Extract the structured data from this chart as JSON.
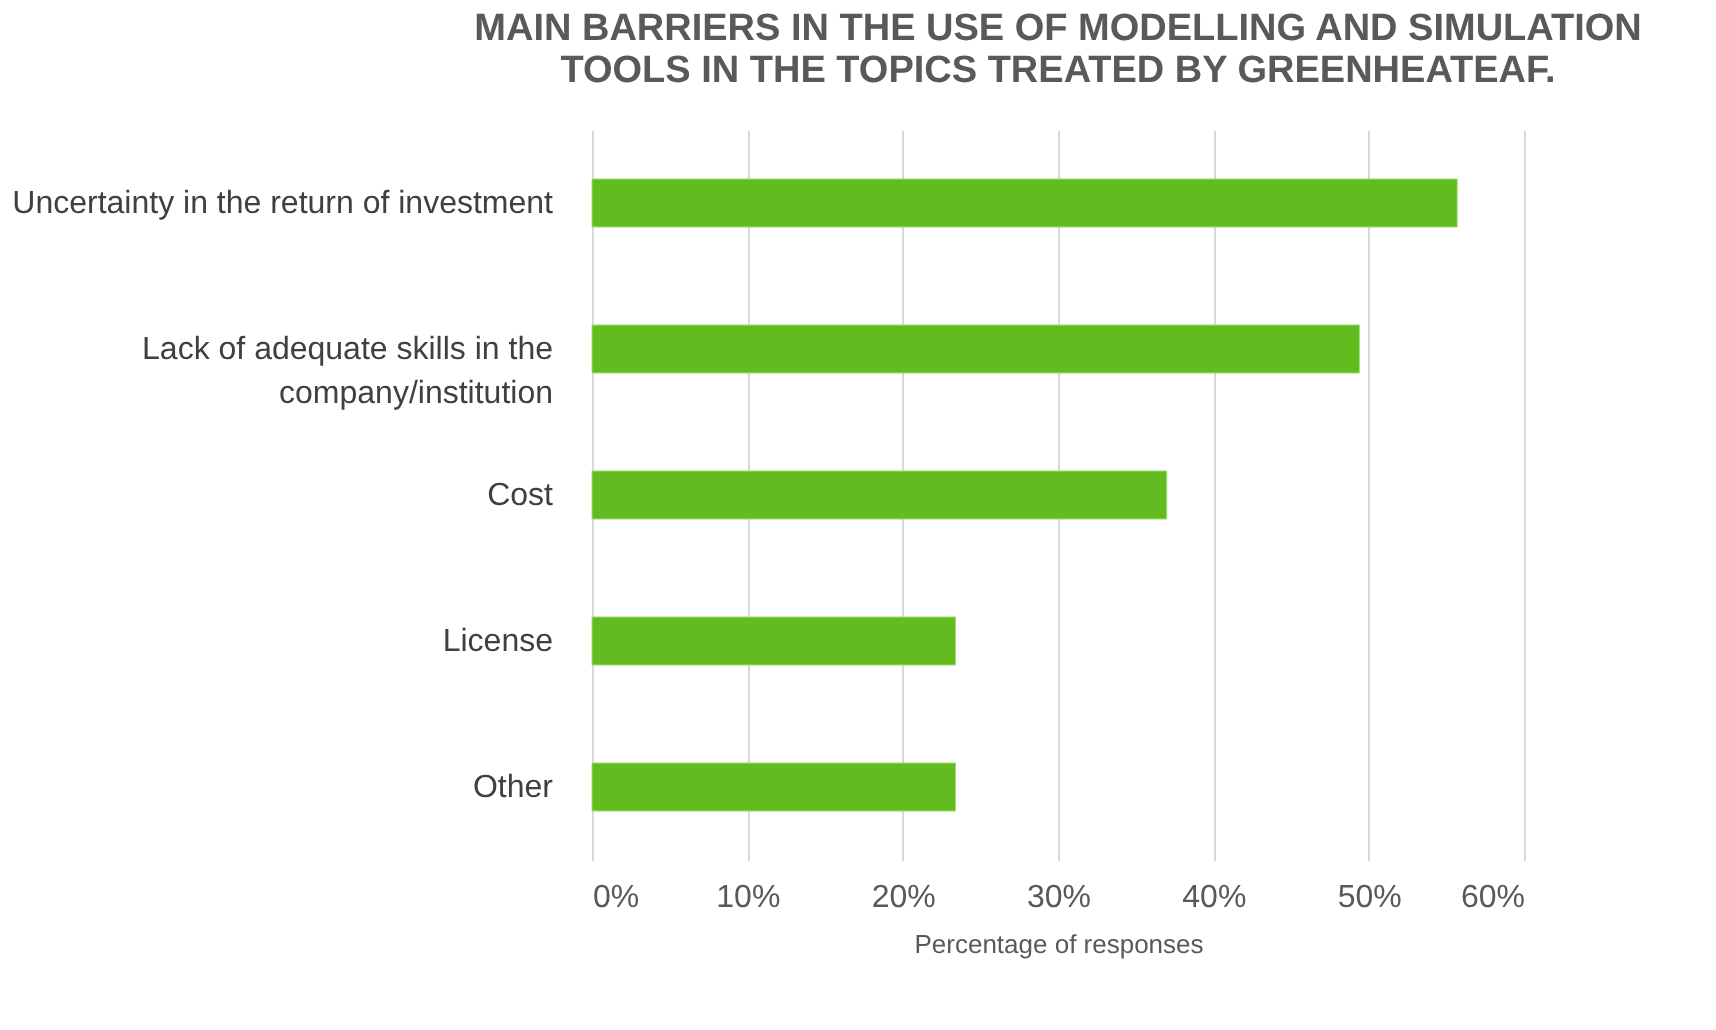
{
  "chart_data": {
    "type": "bar",
    "orientation": "horizontal",
    "title": [
      "MAIN BARRIERS IN THE USE OF MODELLING AND SIMULATION",
      "TOOLS IN THE TOPICS TREATED BY GREENHEATEAF."
    ],
    "categories": [
      "Uncertainty in the return of investment",
      "Lack of adequate skills in the company/institution",
      "Cost",
      "License",
      "Other"
    ],
    "values": [
      55.7,
      49.4,
      37.0,
      23.4,
      23.4
    ],
    "color": "#62bb1f",
    "xlabel": "Percentage of responses",
    "xlim": [
      0,
      60
    ],
    "xticks": [
      {
        "value": 0,
        "label": "0%"
      },
      {
        "value": 10,
        "label": "10%"
      },
      {
        "value": 20,
        "label": "20%"
      },
      {
        "value": 30,
        "label": "30%"
      },
      {
        "value": 40,
        "label": "40%"
      },
      {
        "value": 50,
        "label": "50%"
      },
      {
        "value": 60,
        "label": "60%"
      }
    ],
    "grid": "x"
  }
}
